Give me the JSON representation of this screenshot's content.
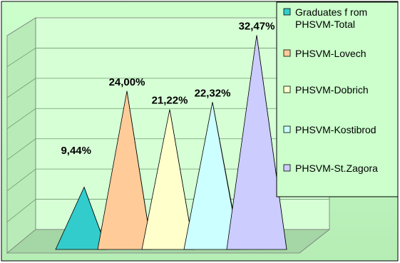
{
  "chart_data": {
    "type": "bar",
    "style": "3d-pyramid",
    "title": "",
    "xlabel": "",
    "ylabel": "",
    "unit": "%",
    "ylim": [
      0,
      35
    ],
    "grid": true,
    "legend_position": "right",
    "categories": [
      "Graduates from PHSVM-Total",
      "PHSVM-Lovech",
      "PHSVM-Dobrich",
      "PHSVM-Kostibrod",
      "PHSVM-St.Zagora"
    ],
    "values": [
      9.44,
      24.0,
      21.22,
      22.32,
      32.47
    ],
    "data_labels": [
      "9,44%",
      "24,00%",
      "21,22%",
      "22,32%",
      "32,47%"
    ],
    "legend": [
      {
        "lines": [
          "Graduates f rom",
          "PHSVM-Total"
        ],
        "color": "#33CCCC"
      },
      {
        "lines": [
          "PHSVM-Lovech"
        ],
        "color": "#FFCC99"
      },
      {
        "lines": [
          "PHSVM-Dobrich"
        ],
        "color": "#FFFFCC"
      },
      {
        "lines": [
          "PHSVM-Kostibrod"
        ],
        "color": "#CCFFFF"
      },
      {
        "lines": [
          "PHSVM-St.Zagora"
        ],
        "color": "#CCCCFF"
      }
    ],
    "colors": {
      "background": "#CCFFCC",
      "wall": "#CCFFCC",
      "floor": "#99CC99",
      "legend_bg": "#CCFFCC"
    }
  }
}
